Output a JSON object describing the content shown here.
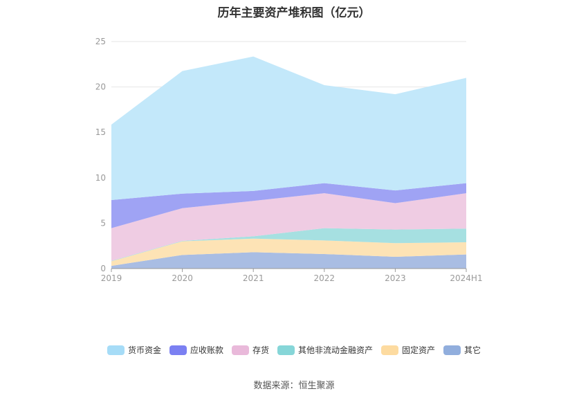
{
  "chart_data": {
    "type": "area",
    "stacked": true,
    "title": "历年主要资产堆积图（亿元）",
    "categories": [
      "2019",
      "2020",
      "2021",
      "2022",
      "2023",
      "2024H1"
    ],
    "ylim": [
      0,
      25
    ],
    "yticks": [
      0,
      5,
      10,
      15,
      20,
      25
    ],
    "grid": true,
    "legend_position": "bottom",
    "series": [
      {
        "name": "其它",
        "color": "#a9bde3",
        "values": [
          0.3,
          1.5,
          1.8,
          1.6,
          1.3,
          1.55
        ]
      },
      {
        "name": "固定资产",
        "color": "#fde3b5",
        "values": [
          0.5,
          1.5,
          1.5,
          1.5,
          1.5,
          1.35
        ]
      },
      {
        "name": "其他非流动金融资产",
        "color": "#a6e0e1",
        "values": [
          0.05,
          0.05,
          0.25,
          1.35,
          1.5,
          1.5
        ]
      },
      {
        "name": "存货",
        "color": "#efcce3",
        "values": [
          3.6,
          3.6,
          3.9,
          3.85,
          2.9,
          3.9
        ]
      },
      {
        "name": "应收账款",
        "color": "#9fa3f4",
        "values": [
          3.1,
          1.6,
          1.1,
          1.1,
          1.4,
          1.1
        ]
      },
      {
        "name": "货币资金",
        "color": "#c3e8fa",
        "values": [
          8.3,
          13.5,
          14.8,
          10.8,
          10.6,
          11.6
        ]
      }
    ]
  },
  "legend_colors": {
    "货币资金": "#a6dcf7",
    "应收账款": "#7b80f2",
    "存货": "#e9b9da",
    "其他非流动金融资产": "#86d6d8",
    "固定资产": "#fddba0",
    "其它": "#91aedd"
  },
  "legend_order": [
    "货币资金",
    "应收账款",
    "存货",
    "其他非流动金融资产",
    "固定资产",
    "其它"
  ],
  "source_note": "数据来源：恒生聚源"
}
